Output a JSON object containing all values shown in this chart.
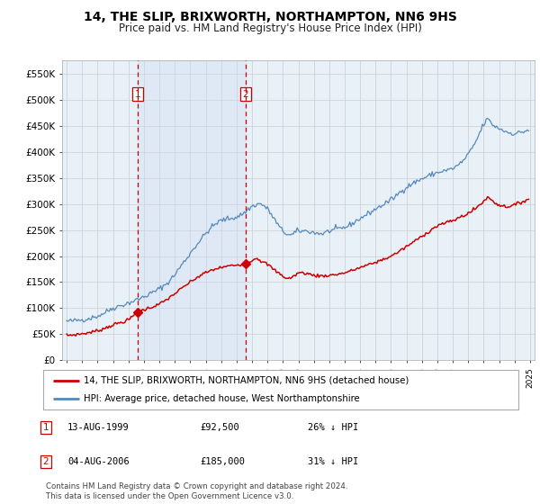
{
  "title": "14, THE SLIP, BRIXWORTH, NORTHAMPTON, NN6 9HS",
  "subtitle": "Price paid vs. HM Land Registry's House Price Index (HPI)",
  "background_color": "#ffffff",
  "plot_bg_color": "#e8f0f8",
  "grid_color": "#cccccc",
  "ylim": [
    0,
    575000
  ],
  "yticks": [
    0,
    50000,
    100000,
    150000,
    200000,
    250000,
    300000,
    350000,
    400000,
    450000,
    500000,
    550000
  ],
  "ytick_labels": [
    "£0",
    "£50K",
    "£100K",
    "£150K",
    "£200K",
    "£250K",
    "£300K",
    "£350K",
    "£400K",
    "£450K",
    "£500K",
    "£550K"
  ],
  "purchase1_year": 1999.617,
  "purchase1_price": 92500,
  "purchase2_year": 2006.586,
  "purchase2_price": 185000,
  "purchase1_label": "1",
  "purchase2_label": "2",
  "footnote": "Contains HM Land Registry data © Crown copyright and database right 2024.\nThis data is licensed under the Open Government Licence v3.0.",
  "legend_line1": "14, THE SLIP, BRIXWORTH, NORTHAMPTON, NN6 9HS (detached house)",
  "legend_line2": "HPI: Average price, detached house, West Northamptonshire",
  "note1_date": "13-AUG-1999",
  "note1_price": "£92,500",
  "note1_pct": "26% ↓ HPI",
  "note2_date": "04-AUG-2006",
  "note2_price": "£185,000",
  "note2_pct": "31% ↓ HPI",
  "red_color": "#cc0000",
  "blue_color": "#5588bb",
  "shade_color": "#ccddf0",
  "xlim_left": 1994.7,
  "xlim_right": 2025.3
}
